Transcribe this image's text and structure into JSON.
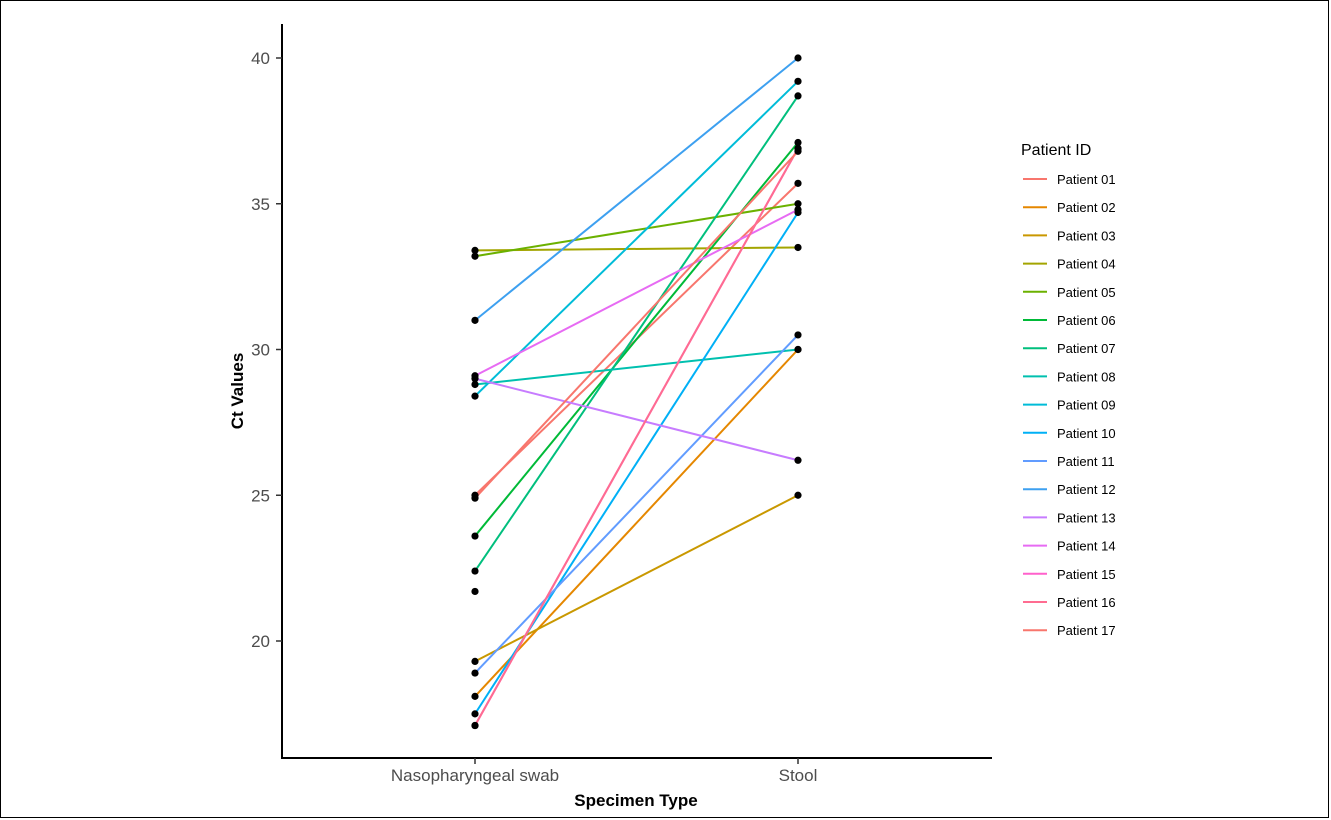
{
  "chart_data": {
    "type": "line",
    "xlabel": "Specimen Type",
    "ylabel": "Ct Values",
    "categories": [
      "Nasopharyngeal swab",
      "Stool"
    ],
    "yticks": [
      20,
      25,
      30,
      35,
      40
    ],
    "ylim": [
      16.5,
      40.8
    ],
    "grid": false,
    "legend_title": "Patient ID",
    "legend_position": "right",
    "series": [
      {
        "name": "Patient 01",
        "color": "#F8766D",
        "values": [
          25.0,
          35.7
        ]
      },
      {
        "name": "Patient 02",
        "color": "#E58700",
        "values": [
          18.1,
          30.0
        ]
      },
      {
        "name": "Patient 03",
        "color": "#C99800",
        "values": [
          19.3,
          25.0
        ]
      },
      {
        "name": "Patient 04",
        "color": "#A3A500",
        "values": [
          33.4,
          33.5
        ]
      },
      {
        "name": "Patient 05",
        "color": "#6BB100",
        "values": [
          33.2,
          35.0
        ]
      },
      {
        "name": "Patient 06",
        "color": "#00BA38",
        "values": [
          23.6,
          37.1
        ]
      },
      {
        "name": "Patient 07",
        "color": "#00BF7D",
        "values": [
          22.4,
          38.7
        ]
      },
      {
        "name": "Patient 08",
        "color": "#00C0AF",
        "values": [
          28.8,
          30.0
        ]
      },
      {
        "name": "Patient 09",
        "color": "#00BCD8",
        "values": [
          28.4,
          39.2
        ]
      },
      {
        "name": "Patient 10",
        "color": "#00B0F6",
        "values": [
          17.5,
          34.7
        ]
      },
      {
        "name": "Patient 11",
        "color": "#619CFF",
        "values": [
          18.9,
          30.5
        ]
      },
      {
        "name": "Patient 12",
        "color": "#3DA0F0",
        "values": [
          31.0,
          40.0
        ]
      },
      {
        "name": "Patient 13",
        "color": "#C77CFF",
        "values": [
          29.0,
          26.2
        ]
      },
      {
        "name": "Patient 14",
        "color": "#E76BF3",
        "values": [
          29.1,
          34.8
        ]
      },
      {
        "name": "Patient 15",
        "color": "#FF61CC",
        "values": [
          17.1,
          36.9
        ]
      },
      {
        "name": "Patient 16",
        "color": "#FF6C91",
        "values": [
          17.1,
          36.9
        ]
      },
      {
        "name": "Patient 17",
        "color": "#F8766D",
        "values": [
          24.9,
          36.8
        ]
      }
    ],
    "unpaired_points": [
      {
        "category": "Nasopharyngeal swab",
        "value": 21.7
      }
    ]
  }
}
